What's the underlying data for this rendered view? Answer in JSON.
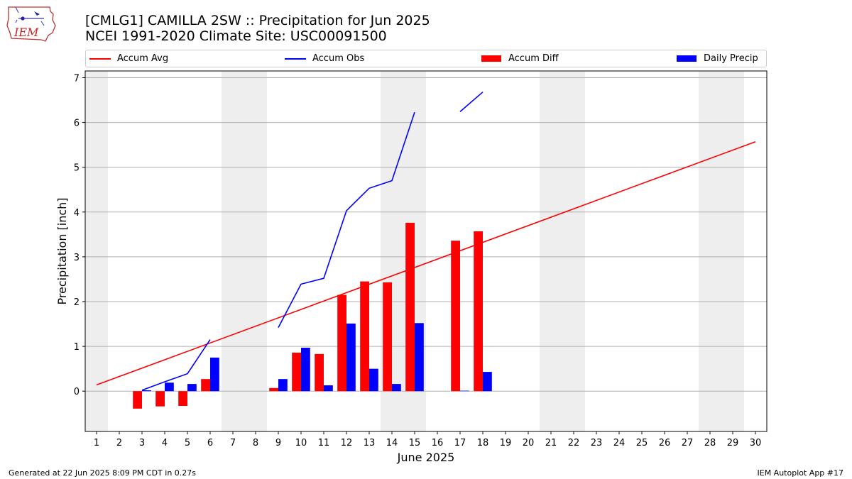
{
  "header": {
    "title_line1": "[CMLG1] CAMILLA 2SW :: Precipitation for Jun 2025",
    "title_line2": "NCEI 1991-2020 Climate Site: USC00091500",
    "logo_text": "IEM"
  },
  "footer": {
    "generated": "Generated at 22 Jun 2025 8:09 PM CDT in 0.27s",
    "app": "IEM Autoplot App #17"
  },
  "legend": {
    "accum_avg": "Accum Avg",
    "accum_obs": "Accum Obs",
    "accum_diff": "Accum Diff",
    "daily_precip": "Daily Precip"
  },
  "colors": {
    "accum_avg": "#ff0000",
    "accum_obs": "#0000ff",
    "accum_diff": "#ff0000",
    "daily_precip": "#0000ff",
    "weekend_shade": "#eeeeee",
    "grid": "#b0b0b0"
  },
  "chart_data": {
    "type": "bar",
    "xlabel": "June 2025",
    "ylabel": "Precipitation [inch]",
    "xlim": [
      0.5,
      30.5
    ],
    "ylim": [
      -0.9,
      7.15
    ],
    "yticks": [
      0,
      1,
      2,
      3,
      4,
      5,
      6,
      7
    ],
    "xticks": [
      1,
      2,
      3,
      4,
      5,
      6,
      7,
      8,
      9,
      10,
      11,
      12,
      13,
      14,
      15,
      16,
      17,
      18,
      19,
      20,
      21,
      22,
      23,
      24,
      25,
      26,
      27,
      28,
      29,
      30
    ],
    "grid": "horizontal",
    "legend_position": "top",
    "weekend_days": [
      1,
      7,
      8,
      14,
      15,
      21,
      22,
      28,
      29
    ],
    "accum_avg": {
      "x": [
        1,
        30
      ],
      "y": [
        0.14,
        5.57
      ]
    },
    "accum_obs": {
      "segments": [
        {
          "x": [
            3,
            4,
            5,
            6
          ],
          "y": [
            0.02,
            0.21,
            0.39,
            1.15
          ]
        },
        {
          "x": [
            9,
            10,
            11,
            12,
            13,
            14,
            15
          ],
          "y": [
            1.42,
            2.39,
            2.52,
            4.03,
            4.53,
            4.7,
            6.23
          ]
        },
        {
          "x": [
            17,
            18
          ],
          "y": [
            6.24,
            6.68
          ]
        }
      ]
    },
    "accum_diff": {
      "x": [
        3,
        4,
        5,
        6,
        9,
        10,
        11,
        12,
        13,
        14,
        15,
        17,
        18
      ],
      "y": [
        -0.39,
        -0.34,
        -0.33,
        0.27,
        0.07,
        0.86,
        0.83,
        2.15,
        2.45,
        2.43,
        3.76,
        3.36,
        3.57
      ]
    },
    "daily_precip": {
      "x": [
        3,
        4,
        5,
        6,
        9,
        10,
        11,
        12,
        13,
        14,
        15,
        17,
        18
      ],
      "y": [
        0.02,
        0.19,
        0.16,
        0.75,
        0.27,
        0.97,
        0.13,
        1.51,
        0.5,
        0.16,
        1.52,
        0.01,
        0.43
      ]
    }
  }
}
